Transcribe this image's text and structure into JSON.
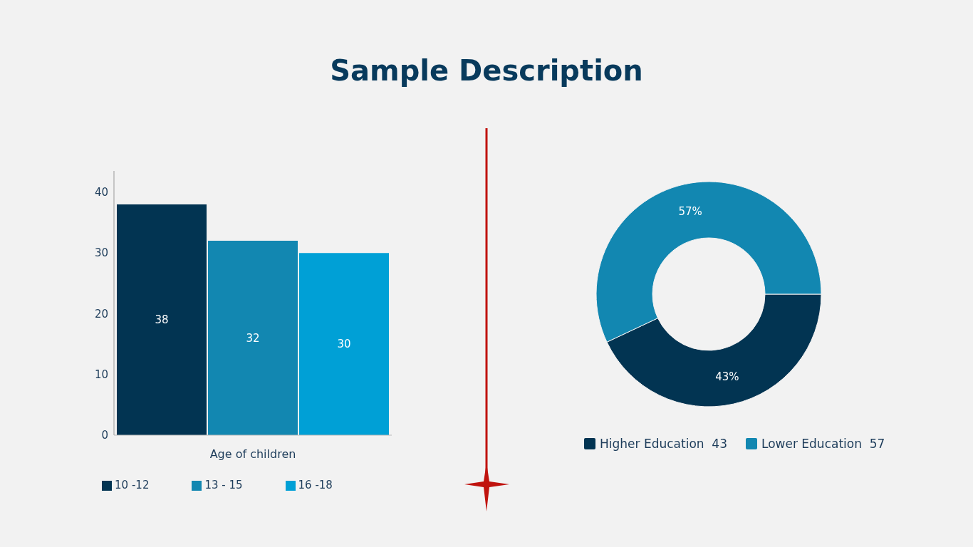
{
  "chart_data": [
    {
      "type": "bar",
      "title": "Sample Description",
      "categories": [
        null
      ],
      "xlabel": "Age of children",
      "series": [
        {
          "name": "10 -12",
          "color": "#023452",
          "values": [
            38
          ]
        },
        {
          "name": "13 - 15",
          "color": "#1287b1",
          "values": [
            32
          ]
        },
        {
          "name": "16 -18",
          "color": "#00a0d6",
          "values": [
            30
          ]
        }
      ],
      "ylim": [
        0,
        43.5
      ],
      "yticks": [
        0,
        10,
        20,
        30,
        40
      ],
      "grid": false,
      "legend": "bottom",
      "data_labels": true,
      "tick_labels": "y"
    },
    {
      "type": "donut",
      "categories": [
        "Higher Education  43",
        "Lower Education  57"
      ],
      "values": [
        43,
        57
      ],
      "colors": [
        "#023452",
        "#1287b1"
      ],
      "value_labels": [
        "43%",
        "57%"
      ],
      "legend": "bottom"
    }
  ]
}
